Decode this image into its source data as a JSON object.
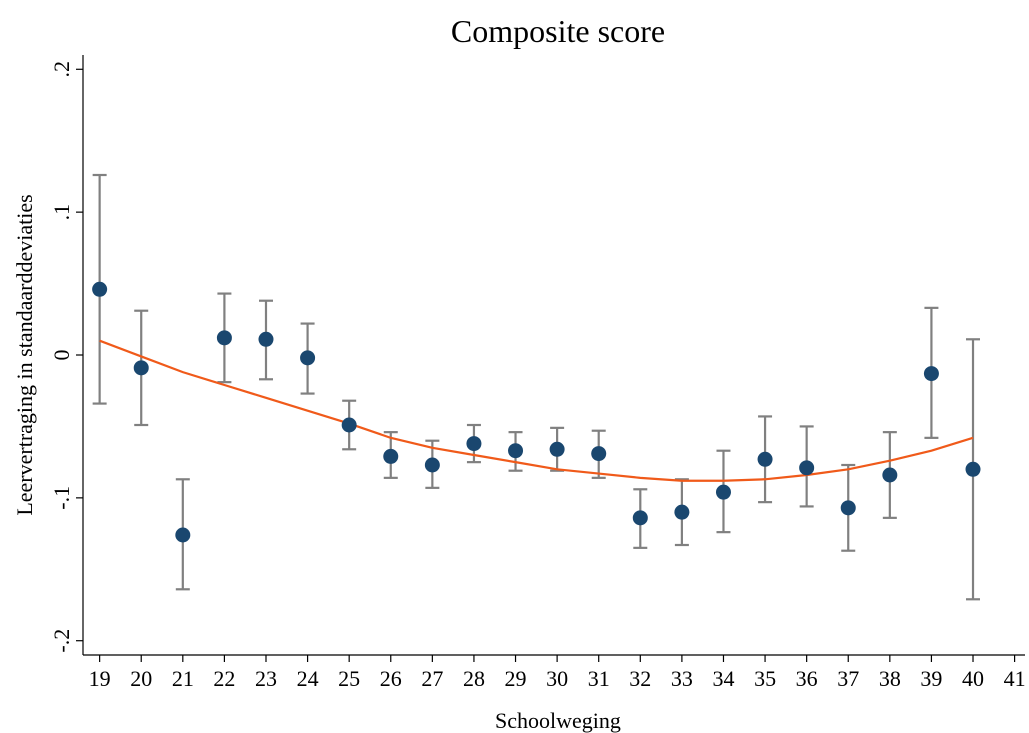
{
  "chart_data": {
    "type": "scatter",
    "title": "Composite score",
    "x_label": "Schoolweging",
    "y_label": "Leervertraging in standaarddeviaties",
    "xlim": [
      18.6,
      41.25
    ],
    "ylim": [
      -0.21,
      0.21
    ],
    "xticks": [
      19,
      20,
      21,
      22,
      23,
      24,
      25,
      26,
      27,
      28,
      29,
      30,
      31,
      32,
      33,
      34,
      35,
      36,
      37,
      38,
      39,
      40,
      41
    ],
    "yticks": [
      {
        "value": -0.2,
        "label": "-.2"
      },
      {
        "value": -0.1,
        "label": "-.1"
      },
      0,
      {
        "value": 0.1,
        "label": ".1"
      },
      {
        "value": 0.2,
        "label": ".2"
      }
    ],
    "grid": false,
    "x": [
      19,
      20,
      21,
      22,
      23,
      24,
      25,
      26,
      27,
      28,
      29,
      30,
      31,
      32,
      33,
      34,
      35,
      36,
      37,
      38,
      39,
      40
    ],
    "series": [
      {
        "color": "#1a476f",
        "error_color": "#808080",
        "values": [
          0.046,
          -0.009,
          -0.126,
          0.012,
          0.011,
          -0.002,
          -0.049,
          -0.071,
          -0.077,
          -0.062,
          -0.067,
          -0.066,
          -0.069,
          -0.114,
          -0.11,
          -0.096,
          -0.073,
          -0.079,
          -0.107,
          -0.084,
          -0.013,
          -0.08
        ],
        "ci_low": [
          -0.034,
          -0.049,
          -0.164,
          -0.019,
          -0.017,
          -0.027,
          -0.066,
          -0.086,
          -0.093,
          -0.075,
          -0.081,
          -0.081,
          -0.086,
          -0.135,
          -0.133,
          -0.124,
          -0.103,
          -0.106,
          -0.137,
          -0.114,
          -0.058,
          -0.171
        ],
        "ci_high": [
          0.126,
          0.031,
          -0.087,
          0.043,
          0.038,
          0.022,
          -0.032,
          -0.054,
          -0.06,
          -0.049,
          -0.054,
          -0.051,
          -0.053,
          -0.094,
          -0.087,
          -0.067,
          -0.043,
          -0.05,
          -0.077,
          -0.054,
          0.033,
          0.011
        ]
      },
      {
        "color": "#f05a1a",
        "style": "line",
        "values": [
          0.01,
          -0.001,
          -0.012,
          -0.021,
          -0.03,
          -0.039,
          -0.048,
          -0.058,
          -0.065,
          -0.07,
          -0.075,
          -0.08,
          -0.083,
          -0.086,
          -0.088,
          -0.088,
          -0.087,
          -0.084,
          -0.08,
          -0.074,
          -0.067,
          -0.058
        ]
      }
    ]
  }
}
